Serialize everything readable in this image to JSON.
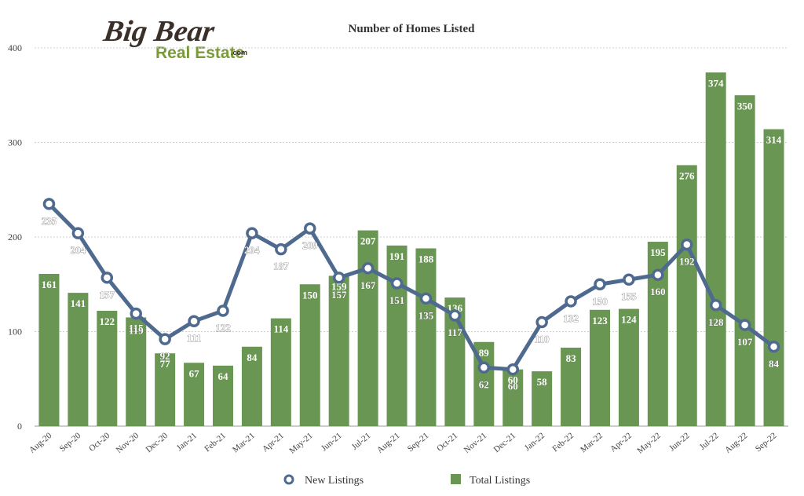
{
  "logo": {
    "line1": "Big Bear",
    "line2": "Real Estate",
    "suffix": ".com"
  },
  "legend": {
    "new_listings": "New Listings",
    "total_listings": "Total Listings"
  },
  "colors": {
    "bar": "#6a9653",
    "line": "#4f6a8f",
    "grid": "#cfcfcf",
    "logo_dark": "#3b2f2a",
    "logo_green": "#7a9a3a"
  },
  "chart_data": {
    "type": "bar",
    "title": "Number of Homes Listed",
    "categories": [
      "Aug-20",
      "Sep-20",
      "Oct-20",
      "Nov-20",
      "Dec-20",
      "Jan-21",
      "Feb-21",
      "Mar-21",
      "Apr-21",
      "May-21",
      "Jun-21",
      "Jul-21",
      "Aug-21",
      "Sep-21",
      "Oct-21",
      "Nov-21",
      "Dec-21",
      "Jan-22",
      "Feb-22",
      "Mar-22",
      "Apr-22",
      "May-22",
      "Jun-22",
      "Jul-22",
      "Aug-22",
      "Sep-22"
    ],
    "ylim": [
      0,
      400
    ],
    "yticks": [
      0,
      100,
      200,
      300,
      400
    ],
    "grid": true,
    "legend_position": "bottom",
    "series": [
      {
        "name": "Total Listings",
        "type": "bar",
        "values": [
          161,
          141,
          122,
          115,
          77,
          67,
          64,
          84,
          114,
          150,
          159,
          207,
          191,
          188,
          136,
          89,
          60,
          58,
          83,
          123,
          124,
          195,
          276,
          374,
          350,
          314
        ]
      },
      {
        "name": "New Listings",
        "type": "line",
        "values": [
          235,
          204,
          157,
          119,
          92,
          111,
          122,
          204,
          187,
          209,
          157,
          167,
          151,
          135,
          117,
          62,
          60,
          110,
          132,
          150,
          155,
          160,
          192,
          128,
          107,
          84
        ]
      }
    ]
  }
}
